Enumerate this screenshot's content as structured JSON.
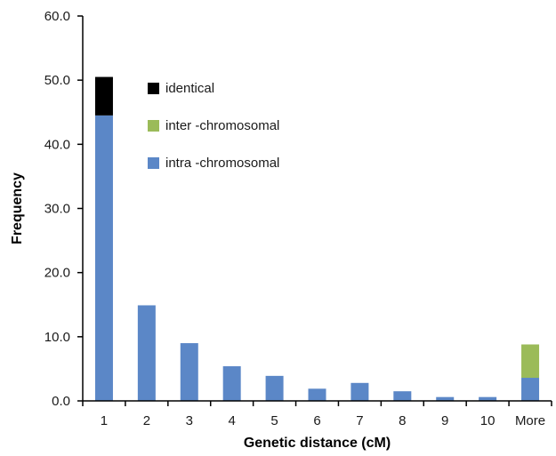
{
  "chart_data": {
    "type": "bar",
    "stacked": true,
    "title": "",
    "xlabel": "Genetic distance (cM)",
    "ylabel": "Frequency",
    "ylim": [
      0,
      60
    ],
    "yticks": [
      "0.0",
      "10.0",
      "20.0",
      "30.0",
      "40.0",
      "50.0",
      "60.0"
    ],
    "ytick_values": [
      0,
      10,
      20,
      30,
      40,
      50,
      60
    ],
    "categories": [
      "1",
      "2",
      "3",
      "4",
      "5",
      "6",
      "7",
      "8",
      "9",
      "10",
      "More"
    ],
    "series": [
      {
        "name": "intra -chromosomal",
        "color": "#5b87c7",
        "values": [
          44.5,
          14.9,
          9.0,
          5.4,
          3.9,
          1.9,
          2.8,
          1.5,
          0.6,
          0.6,
          3.6
        ]
      },
      {
        "name": "inter -chromosomal",
        "color": "#9bbb59",
        "values": [
          0,
          0,
          0,
          0,
          0,
          0,
          0,
          0,
          0,
          0,
          5.2
        ]
      },
      {
        "name": "identical",
        "color": "#000000",
        "values": [
          6.0,
          0,
          0,
          0,
          0,
          0,
          0,
          0,
          0,
          0,
          0
        ]
      }
    ],
    "legend": {
      "placement": "top-left",
      "order": [
        "identical",
        "inter -chromosomal",
        "intra -chromosomal"
      ]
    },
    "grid": false
  }
}
